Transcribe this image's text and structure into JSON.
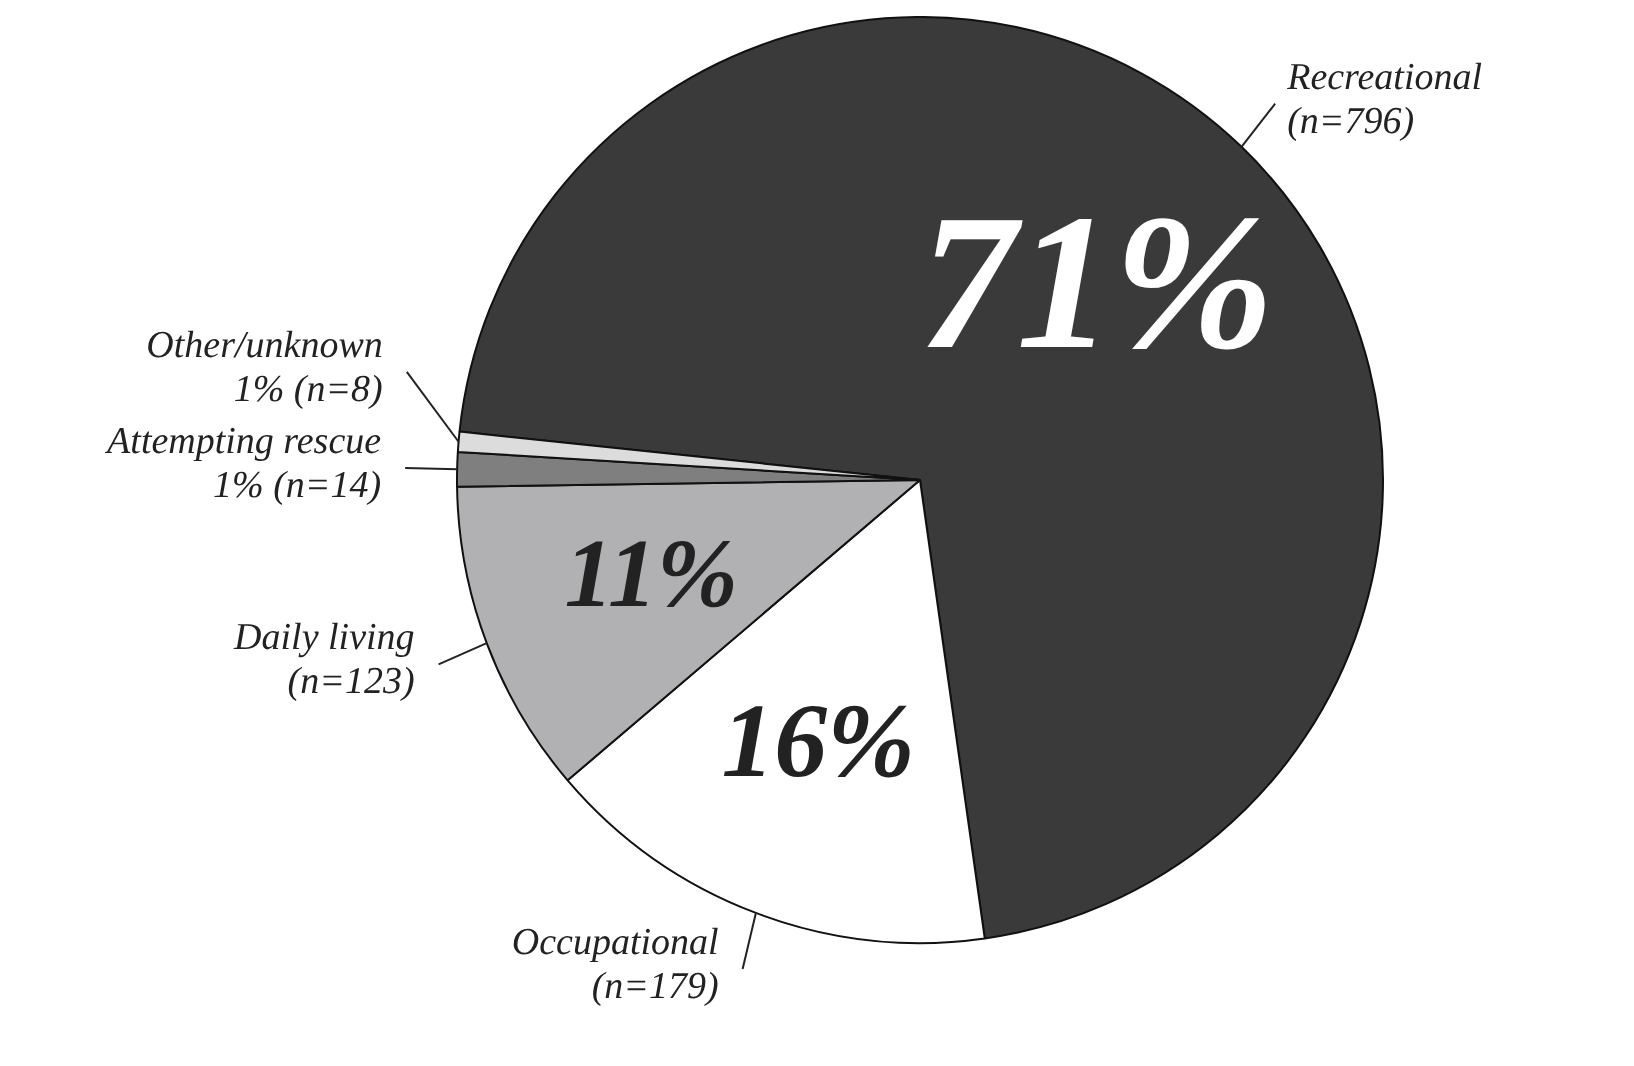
{
  "chart_data": {
    "type": "pie",
    "categories": [
      "Recreational\n(n=796)",
      "Occupational\n(n=179)",
      "Daily living\n(n=123)",
      "Attempting rescue\n1% (n=14)",
      "Other/unknown\n1% (n=8)"
    ],
    "values": [
      71.1,
      16.0,
      11.0,
      1.2,
      0.7
    ],
    "colors": [
      "#3a3a3a",
      "#ffffff",
      "#b1b1b3",
      "#7f7f7f",
      "#dcdcdc"
    ],
    "value_labels": [
      "71%",
      "16%",
      "11%",
      null,
      null
    ]
  }
}
